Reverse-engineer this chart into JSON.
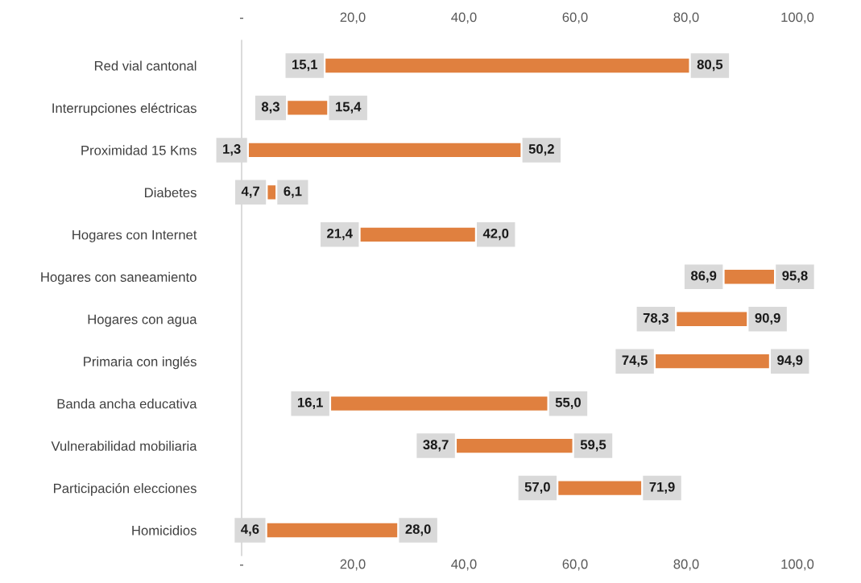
{
  "chart_data": {
    "type": "bar",
    "orientation": "horizontal",
    "categories": [
      "Red vial cantonal",
      "Interrupciones eléctricas",
      "Proximidad 15 Kms",
      "Diabetes",
      "Hogares con Internet",
      "Hogares con saneamiento",
      "Hogares con agua",
      "Primaria con inglés",
      "Banda ancha educativa",
      "Vulnerabilidad mobiliaria",
      "Participación elecciones",
      "Homicidios"
    ],
    "base": [
      15.1,
      8.3,
      1.3,
      4.7,
      21.4,
      86.9,
      78.3,
      74.5,
      16.1,
      38.7,
      57.0,
      4.6
    ],
    "values": [
      65.4,
      7.1,
      48.9,
      1.4,
      20.6,
      8.9,
      12.6,
      20.4,
      38.9,
      20.8,
      14.9,
      23.4
    ],
    "color": "#e0803f",
    "value_labels": [
      "80,5",
      "15,4",
      "50,2",
      "6,1",
      "42,0",
      "95,8",
      "90,9",
      "94,9",
      "55,0",
      "59,5",
      "71,9",
      "28,0"
    ],
    "annotations": [
      {
        "text": "15,1",
        "x": 15.1,
        "y": "Red vial cantonal"
      },
      {
        "text": "8,3",
        "x": 8.3,
        "y": "Interrupciones eléctricas"
      },
      {
        "text": "1,3",
        "x": 1.3,
        "y": "Proximidad 15 Kms"
      },
      {
        "text": "4,7",
        "x": 4.7,
        "y": "Diabetes"
      },
      {
        "text": "21,4",
        "x": 21.4,
        "y": "Hogares con Internet"
      },
      {
        "text": "86,9",
        "x": 86.9,
        "y": "Hogares con saneamiento"
      },
      {
        "text": "78,3",
        "x": 78.3,
        "y": "Hogares con agua"
      },
      {
        "text": "74,5",
        "x": 74.5,
        "y": "Primaria con inglés"
      },
      {
        "text": "16,1",
        "x": 16.1,
        "y": "Banda ancha educativa"
      },
      {
        "text": "38,7",
        "x": 38.7,
        "y": "Vulnerabilidad mobiliaria"
      },
      {
        "text": "57,0",
        "x": 57.0,
        "y": "Participación elecciones"
      },
      {
        "text": "4,6",
        "x": 4.6,
        "y": "Homicidios"
      }
    ],
    "xlim": [
      0,
      100
    ],
    "xticks": [
      {
        "value": 0,
        "label": "-"
      },
      {
        "value": 20,
        "label": "20,0"
      },
      {
        "value": 40,
        "label": "40,0"
      },
      {
        "value": 60,
        "label": "60,0"
      },
      {
        "value": 80,
        "label": "80,0"
      },
      {
        "value": 100,
        "label": "100,0"
      }
    ],
    "x2lim": [
      0,
      100
    ],
    "x2ticks": [
      {
        "value": 0,
        "label": "-"
      },
      {
        "value": 20,
        "label": "20,0"
      },
      {
        "value": 40,
        "label": "40,0"
      },
      {
        "value": 60,
        "label": "60,0"
      },
      {
        "value": 80,
        "label": "80,0"
      },
      {
        "value": 100,
        "label": "100,0"
      }
    ]
  }
}
